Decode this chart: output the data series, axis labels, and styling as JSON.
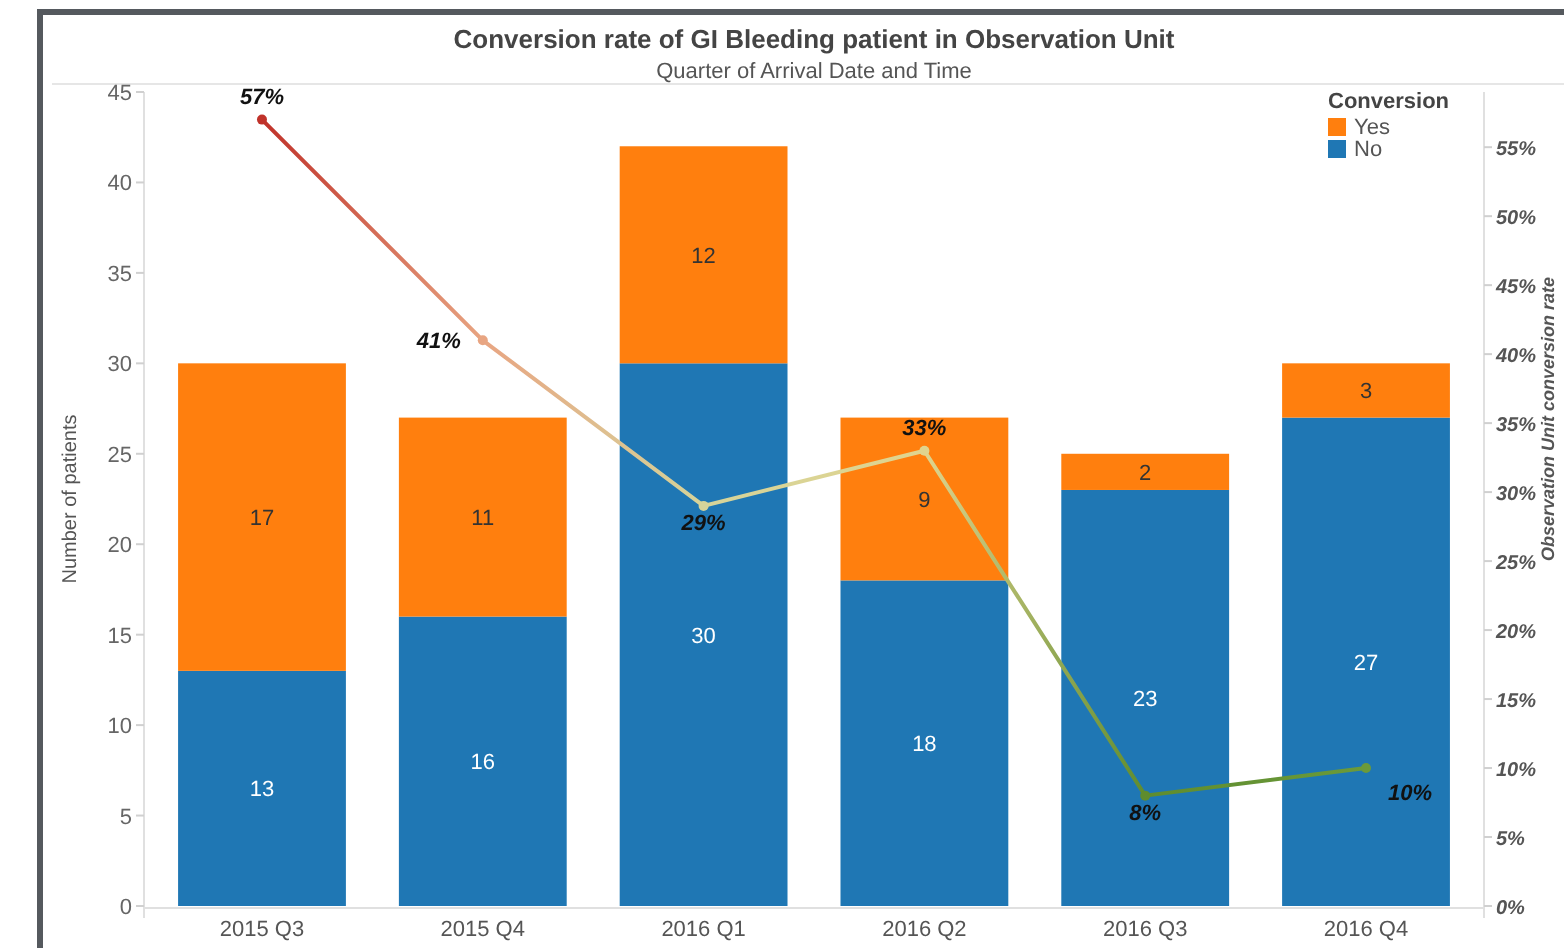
{
  "chart_data": {
    "type": "bar",
    "title": "Conversion rate of GI Bleeding patient in Observation Unit",
    "subtitle": "Quarter of Arrival Date and Time",
    "ylabel": "Number of patients",
    "y2label": "Observation Unit conversion rate",
    "legend_title": "Conversion",
    "legend": "top right",
    "stacked": true,
    "categories": [
      "2015 Q3",
      "2015 Q4",
      "2016 Q1",
      "2016 Q2",
      "2016 Q3",
      "2016 Q4"
    ],
    "series": [
      {
        "name": "No",
        "color": "#1f77b4",
        "values": [
          13,
          16,
          30,
          18,
          23,
          27
        ],
        "data_labels": true
      },
      {
        "name": "Yes",
        "color": "#ff7f0e",
        "values": [
          17,
          11,
          12,
          9,
          2,
          3
        ],
        "data_labels": true
      },
      {
        "type": "line",
        "axis": "y2",
        "colors": [
          "#c0322a",
          "#e8a582",
          "#d6d49a",
          "#e0d48e",
          "#5f8c2e",
          "#6b9a3a"
        ],
        "values": [
          57,
          41,
          29,
          33,
          8,
          10
        ],
        "value_labels": [
          "57%",
          "41%",
          "29%",
          "33%",
          "8%",
          "10%"
        ],
        "marker": "circle"
      }
    ],
    "ylim": [
      0,
      45
    ],
    "yticks": [
      0,
      5,
      10,
      15,
      20,
      25,
      30,
      35,
      40,
      45
    ],
    "y2lim": [
      0,
      59
    ],
    "y2ticks": [
      {
        "value": 0,
        "label": "0%"
      },
      {
        "value": 5,
        "label": "5%"
      },
      {
        "value": 10,
        "label": "10%"
      },
      {
        "value": 15,
        "label": "15%"
      },
      {
        "value": 20,
        "label": "20%"
      },
      {
        "value": 25,
        "label": "25%"
      },
      {
        "value": 30,
        "label": "30%"
      },
      {
        "value": 35,
        "label": "35%"
      },
      {
        "value": 40,
        "label": "40%"
      },
      {
        "value": 45,
        "label": "45%"
      },
      {
        "value": 50,
        "label": "50%"
      },
      {
        "value": 55,
        "label": "55%"
      }
    ]
  }
}
